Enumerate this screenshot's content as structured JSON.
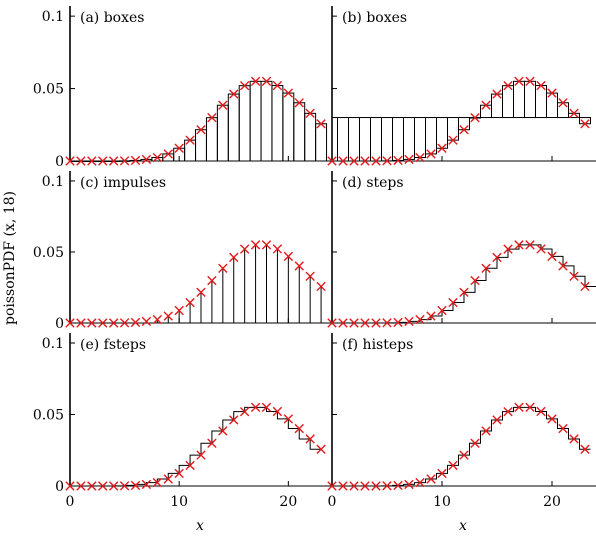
{
  "figure": {
    "ylabel": "poissonPDF (x, 18)",
    "xlabel": "x"
  },
  "chart_data": [
    {
      "type": "bar",
      "style": "boxes",
      "panel_label": "(a) boxes",
      "x": [
        0,
        1,
        2,
        3,
        4,
        5,
        6,
        7,
        8,
        9,
        10,
        11,
        12,
        13,
        14,
        15,
        16,
        17,
        18,
        19,
        20,
        21,
        22,
        23
      ],
      "values": [
        0.0,
        0.0,
        0.0,
        0.0,
        0.0,
        0.0001,
        0.0004,
        0.0011,
        0.0024,
        0.0049,
        0.0088,
        0.0144,
        0.0216,
        0.0299,
        0.0385,
        0.0462,
        0.052,
        0.055,
        0.055,
        0.0521,
        0.0469,
        0.0402,
        0.0329,
        0.0257
      ],
      "markers": [
        0.0,
        0.0,
        0.0,
        0.0,
        0.0,
        0.0001,
        0.0004,
        0.0011,
        0.0024,
        0.0049,
        0.0088,
        0.0144,
        0.0216,
        0.0299,
        0.0385,
        0.0462,
        0.052,
        0.055,
        0.055,
        0.0521,
        0.0469,
        0.0402,
        0.0329,
        0.0257
      ],
      "xlim": [
        0,
        24
      ],
      "ylim": [
        0,
        0.107
      ],
      "yticks": [
        0,
        0.05,
        0.1
      ],
      "ytick_labels": [
        "0",
        "0.05",
        "0.1"
      ],
      "baseline": 0,
      "grid": false
    },
    {
      "type": "bar",
      "style": "boxes",
      "panel_label": "(b) boxes",
      "x": [
        0,
        1,
        2,
        3,
        4,
        5,
        6,
        7,
        8,
        9,
        10,
        11,
        12,
        13,
        14,
        15,
        16,
        17,
        18,
        19,
        20,
        21,
        22,
        23
      ],
      "values": [
        0.0,
        0.0,
        0.0,
        0.0,
        0.0,
        0.0001,
        0.0004,
        0.0011,
        0.0024,
        0.0049,
        0.0088,
        0.0144,
        0.0216,
        0.0299,
        0.0385,
        0.0462,
        0.052,
        0.055,
        0.055,
        0.0521,
        0.0469,
        0.0402,
        0.0329,
        0.0257
      ],
      "markers": [
        0.0,
        0.0,
        0.0,
        0.0,
        0.0,
        0.0001,
        0.0004,
        0.0011,
        0.0024,
        0.0049,
        0.0088,
        0.0144,
        0.0216,
        0.0299,
        0.0385,
        0.0462,
        0.052,
        0.055,
        0.055,
        0.0521,
        0.0469,
        0.0402,
        0.0329,
        0.0257
      ],
      "xlim": [
        0,
        24
      ],
      "ylim": [
        0,
        0.107
      ],
      "baseline": 0.03,
      "grid": false
    },
    {
      "type": "bar",
      "style": "impulses",
      "panel_label": "(c) impulses",
      "x": [
        0,
        1,
        2,
        3,
        4,
        5,
        6,
        7,
        8,
        9,
        10,
        11,
        12,
        13,
        14,
        15,
        16,
        17,
        18,
        19,
        20,
        21,
        22,
        23
      ],
      "values": [
        0.0,
        0.0,
        0.0,
        0.0,
        0.0,
        0.0001,
        0.0004,
        0.0011,
        0.0024,
        0.0049,
        0.0088,
        0.0144,
        0.0216,
        0.0299,
        0.0385,
        0.0462,
        0.052,
        0.055,
        0.055,
        0.0521,
        0.0469,
        0.0402,
        0.0329,
        0.0257
      ],
      "markers": [
        0.0,
        0.0,
        0.0,
        0.0,
        0.0,
        0.0001,
        0.0004,
        0.0011,
        0.0024,
        0.0049,
        0.0088,
        0.0144,
        0.0216,
        0.0299,
        0.0385,
        0.0462,
        0.052,
        0.055,
        0.055,
        0.0521,
        0.0469,
        0.0402,
        0.0329,
        0.0257
      ],
      "xlim": [
        0,
        24
      ],
      "ylim": [
        0,
        0.107
      ],
      "yticks": [
        0,
        0.05,
        0.1
      ],
      "ytick_labels": [
        "0",
        "0.05",
        "0.1"
      ],
      "baseline": 0,
      "grid": false
    },
    {
      "type": "line",
      "style": "steps",
      "panel_label": "(d) steps",
      "x": [
        0,
        1,
        2,
        3,
        4,
        5,
        6,
        7,
        8,
        9,
        10,
        11,
        12,
        13,
        14,
        15,
        16,
        17,
        18,
        19,
        20,
        21,
        22,
        23
      ],
      "values": [
        0.0,
        0.0,
        0.0,
        0.0,
        0.0,
        0.0001,
        0.0004,
        0.0011,
        0.0024,
        0.0049,
        0.0088,
        0.0144,
        0.0216,
        0.0299,
        0.0385,
        0.0462,
        0.052,
        0.055,
        0.055,
        0.0521,
        0.0469,
        0.0402,
        0.0329,
        0.0257
      ],
      "markers": [
        0.0,
        0.0,
        0.0,
        0.0,
        0.0,
        0.0001,
        0.0004,
        0.0011,
        0.0024,
        0.0049,
        0.0088,
        0.0144,
        0.0216,
        0.0299,
        0.0385,
        0.0462,
        0.052,
        0.055,
        0.055,
        0.0521,
        0.0469,
        0.0402,
        0.0329,
        0.0257
      ],
      "xlim": [
        0,
        24
      ],
      "ylim": [
        0,
        0.107
      ],
      "grid": false
    },
    {
      "type": "line",
      "style": "fsteps",
      "panel_label": "(e) fsteps",
      "x": [
        0,
        1,
        2,
        3,
        4,
        5,
        6,
        7,
        8,
        9,
        10,
        11,
        12,
        13,
        14,
        15,
        16,
        17,
        18,
        19,
        20,
        21,
        22,
        23
      ],
      "values": [
        0.0,
        0.0,
        0.0,
        0.0,
        0.0,
        0.0001,
        0.0004,
        0.0011,
        0.0024,
        0.0049,
        0.0088,
        0.0144,
        0.0216,
        0.0299,
        0.0385,
        0.0462,
        0.052,
        0.055,
        0.055,
        0.0521,
        0.0469,
        0.0402,
        0.0329,
        0.0257
      ],
      "markers": [
        0.0,
        0.0,
        0.0,
        0.0,
        0.0,
        0.0001,
        0.0004,
        0.0011,
        0.0024,
        0.0049,
        0.0088,
        0.0144,
        0.0216,
        0.0299,
        0.0385,
        0.0462,
        0.052,
        0.055,
        0.055,
        0.0521,
        0.0469,
        0.0402,
        0.0329,
        0.0257
      ],
      "xlim": [
        0,
        24
      ],
      "ylim": [
        0,
        0.107
      ],
      "yticks": [
        0,
        0.05,
        0.1
      ],
      "ytick_labels": [
        "0",
        "0.05",
        "0.1"
      ],
      "xticks": [
        0,
        10,
        20
      ],
      "xtick_labels": [
        "0",
        "10",
        "20"
      ],
      "grid": false
    },
    {
      "type": "line",
      "style": "histeps",
      "panel_label": "(f) histeps",
      "x": [
        0,
        1,
        2,
        3,
        4,
        5,
        6,
        7,
        8,
        9,
        10,
        11,
        12,
        13,
        14,
        15,
        16,
        17,
        18,
        19,
        20,
        21,
        22,
        23
      ],
      "values": [
        0.0,
        0.0,
        0.0,
        0.0,
        0.0,
        0.0001,
        0.0004,
        0.0011,
        0.0024,
        0.0049,
        0.0088,
        0.0144,
        0.0216,
        0.0299,
        0.0385,
        0.0462,
        0.052,
        0.055,
        0.055,
        0.0521,
        0.0469,
        0.0402,
        0.0329,
        0.0257
      ],
      "markers": [
        0.0,
        0.0,
        0.0,
        0.0,
        0.0,
        0.0001,
        0.0004,
        0.0011,
        0.0024,
        0.0049,
        0.0088,
        0.0144,
        0.0216,
        0.0299,
        0.0385,
        0.0462,
        0.052,
        0.055,
        0.055,
        0.0521,
        0.0469,
        0.0402,
        0.0329,
        0.0257
      ],
      "xlim": [
        0,
        24
      ],
      "ylim": [
        0,
        0.107
      ],
      "xticks": [
        0,
        10,
        20
      ],
      "xtick_labels": [
        "0",
        "10",
        "20"
      ],
      "grid": false
    }
  ],
  "colors": {
    "marker": "#e41a1c",
    "line": "#000000",
    "axis": "#000000"
  }
}
